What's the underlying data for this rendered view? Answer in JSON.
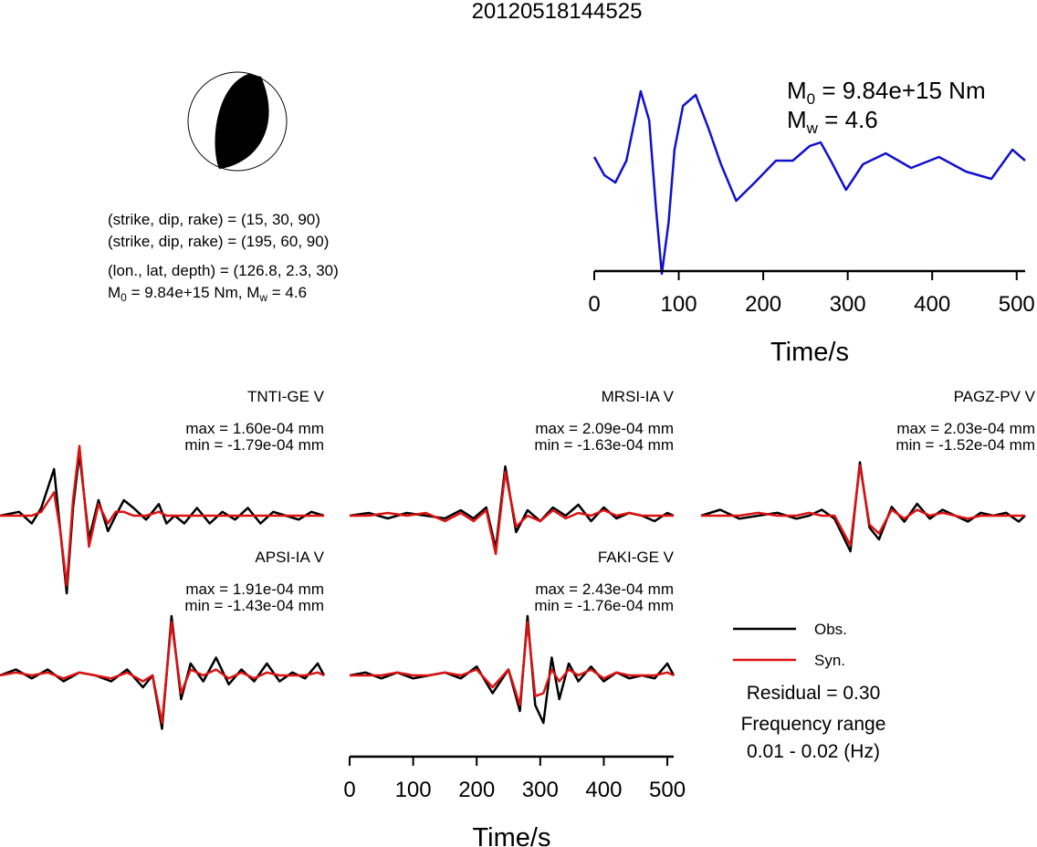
{
  "title": "20120518144525",
  "colors": {
    "observed": "#000000",
    "synthetic": "#dd1111",
    "source_time_function": "#1111cc",
    "beachball_fill": "#000000"
  },
  "mechanism": {
    "line1": "(strike, dip, rake) = (15, 30, 90)",
    "line2": "(strike, dip, rake) = (195, 60, 90)",
    "line3": "(lon., lat, depth) = (126.8, 2.3, 30)",
    "moment_prefix": "M",
    "moment_sub": "0",
    "moment_value": " = 9.84e+15 Nm, M",
    "magnitude_sub": "w",
    "magnitude_value": " = 4.6"
  },
  "stf_label": {
    "m0_prefix": "M",
    "m0_sub": "0",
    "m0_value": " = 9.84e+15 Nm",
    "mw_prefix": "M",
    "mw_sub": "w",
    "mw_value": " = 4.6"
  },
  "stations": [
    {
      "name": "TNTI-GE V",
      "max": "max = 1.60e-04 mm",
      "min": "min = -1.79e-04 mm"
    },
    {
      "name": "MRSI-IA V",
      "max": "max = 2.09e-04 mm",
      "min": "min = -1.63e-04 mm"
    },
    {
      "name": "PAGZ-PV V",
      "max": "max = 2.03e-04 mm",
      "min": "min = -1.52e-04 mm"
    },
    {
      "name": "APSI-IA V",
      "max": "max = 1.91e-04 mm",
      "min": "min = -1.43e-04 mm"
    },
    {
      "name": "FAKI-GE V",
      "max": "max = 2.43e-04 mm",
      "min": "min = -1.76e-04 mm"
    }
  ],
  "legend": {
    "observed": "Obs.",
    "synthetic": "Syn."
  },
  "residual": "Residual = 0.30",
  "frequency_title": "Frequency range",
  "frequency_value": "0.01 - 0.02 (Hz)",
  "chart_data": [
    {
      "type": "line",
      "title": "",
      "xlabel": "Time/s",
      "ylabel": "",
      "xlim": [
        0,
        510
      ],
      "xticks": [
        0,
        100,
        200,
        300,
        400,
        500
      ],
      "series": [
        {
          "x": [
            0,
            12,
            25,
            38,
            55,
            65,
            73,
            80,
            88,
            95,
            105,
            120,
            135,
            150,
            168,
            190,
            215,
            235,
            255,
            268,
            280,
            298,
            318,
            345,
            375,
            408,
            440,
            470,
            495,
            510
          ],
          "y": [
            0.1,
            -0.15,
            -0.25,
            0.05,
            1.0,
            0.6,
            -0.6,
            -1.5,
            -0.8,
            0.2,
            0.8,
            0.95,
            0.5,
            0.0,
            -0.5,
            -0.25,
            0.05,
            0.05,
            0.25,
            0.3,
            0.05,
            -0.35,
            0.0,
            0.15,
            -0.05,
            0.1,
            -0.1,
            -0.2,
            0.2,
            0.05
          ]
        }
      ]
    },
    {
      "type": "line",
      "title": "TNTI-GE V",
      "xlim": [
        0,
        510
      ],
      "series": [
        {
          "name": "Obs.",
          "x": [
            0,
            30,
            50,
            65,
            85,
            95,
            105,
            115,
            125,
            140,
            155,
            170,
            182,
            195,
            210,
            230,
            250,
            262,
            275,
            290,
            310,
            330,
            350,
            370,
            390,
            410,
            430,
            450,
            470,
            490,
            510
          ],
          "y": [
            0.0,
            0.05,
            -0.1,
            0.1,
            0.6,
            -0.2,
            -1.0,
            0.1,
            0.8,
            -0.3,
            0.2,
            -0.2,
            0.0,
            0.2,
            0.1,
            -0.05,
            0.15,
            -0.1,
            0.0,
            -0.1,
            0.1,
            -0.1,
            0.05,
            -0.05,
            0.1,
            -0.1,
            0.05,
            0.0,
            -0.05,
            0.05,
            0.0
          ]
        },
        {
          "name": "Syn.",
          "x": [
            0,
            30,
            50,
            65,
            85,
            95,
            105,
            115,
            125,
            140,
            155,
            170,
            182,
            195,
            210,
            230,
            250,
            262,
            275,
            290,
            310,
            330,
            350,
            370,
            390,
            410,
            430,
            450,
            470,
            490,
            510
          ],
          "y": [
            0.0,
            0.0,
            0.0,
            0.05,
            0.3,
            -0.2,
            -0.9,
            0.2,
            0.9,
            -0.4,
            0.15,
            -0.1,
            0.05,
            0.05,
            0.0,
            0.0,
            0.05,
            0.0,
            0.0,
            0.0,
            0.0,
            0.0,
            0.0,
            0.0,
            0.0,
            0.0,
            0.0,
            0.0,
            0.0,
            0.0,
            0.0
          ]
        }
      ]
    },
    {
      "type": "line",
      "title": "MRSI-IA V",
      "xlim": [
        0,
        510
      ],
      "series": [
        {
          "name": "Obs.",
          "x": [
            0,
            30,
            60,
            90,
            120,
            150,
            175,
            195,
            215,
            230,
            245,
            262,
            280,
            300,
            320,
            340,
            360,
            380,
            400,
            420,
            440,
            460,
            480,
            500,
            510
          ],
          "y": [
            0.0,
            0.05,
            -0.05,
            0.05,
            0.0,
            -0.05,
            0.1,
            -0.05,
            0.15,
            -0.6,
            0.9,
            -0.3,
            0.1,
            -0.1,
            0.15,
            0.0,
            0.2,
            -0.1,
            0.15,
            -0.05,
            0.05,
            0.0,
            -0.1,
            0.05,
            0.0
          ]
        },
        {
          "name": "Syn.",
          "x": [
            0,
            30,
            60,
            90,
            120,
            150,
            175,
            195,
            215,
            230,
            245,
            262,
            280,
            300,
            320,
            340,
            360,
            380,
            400,
            420,
            440,
            460,
            480,
            500,
            510
          ],
          "y": [
            0.0,
            0.0,
            0.05,
            0.0,
            0.05,
            -0.1,
            0.05,
            -0.1,
            0.1,
            -0.7,
            0.8,
            -0.2,
            0.0,
            -0.1,
            0.1,
            -0.05,
            0.05,
            0.0,
            0.1,
            0.0,
            0.05,
            0.0,
            0.0,
            0.0,
            0.0
          ]
        }
      ]
    },
    {
      "type": "line",
      "title": "PAGZ-PV V",
      "xlim": [
        0,
        510
      ],
      "series": [
        {
          "name": "Obs.",
          "x": [
            0,
            30,
            60,
            90,
            120,
            150,
            170,
            190,
            210,
            235,
            250,
            265,
            280,
            300,
            320,
            340,
            360,
            380,
            400,
            420,
            440,
            460,
            480,
            500,
            510
          ],
          "y": [
            0.0,
            0.1,
            -0.05,
            0.0,
            0.05,
            -0.05,
            0.0,
            0.1,
            -0.05,
            -0.6,
            0.9,
            -0.2,
            -0.4,
            0.15,
            -0.1,
            0.2,
            -0.05,
            0.1,
            0.0,
            -0.1,
            0.05,
            0.0,
            0.05,
            -0.1,
            0.0
          ]
        },
        {
          "name": "Syn.",
          "x": [
            0,
            30,
            60,
            90,
            120,
            150,
            170,
            190,
            210,
            235,
            250,
            265,
            280,
            300,
            320,
            340,
            360,
            380,
            400,
            420,
            440,
            460,
            480,
            500,
            510
          ],
          "y": [
            0.0,
            0.0,
            0.0,
            0.05,
            0.0,
            0.0,
            0.05,
            0.0,
            0.0,
            -0.5,
            0.85,
            -0.15,
            -0.3,
            0.1,
            -0.05,
            0.1,
            0.0,
            0.05,
            0.0,
            -0.05,
            0.0,
            0.0,
            0.0,
            0.0,
            0.0
          ]
        }
      ]
    },
    {
      "type": "line",
      "title": "APSI-IA V",
      "xlim": [
        0,
        510
      ],
      "series": [
        {
          "name": "Obs.",
          "x": [
            0,
            25,
            50,
            75,
            100,
            125,
            150,
            175,
            200,
            225,
            240,
            255,
            270,
            285,
            300,
            320,
            340,
            360,
            380,
            400,
            420,
            440,
            460,
            480,
            500,
            510
          ],
          "y": [
            0.0,
            0.1,
            -0.05,
            0.1,
            -0.1,
            0.05,
            0.0,
            -0.1,
            0.1,
            -0.2,
            0.0,
            -0.9,
            1.0,
            -0.4,
            0.2,
            -0.1,
            0.3,
            -0.15,
            0.1,
            -0.1,
            0.2,
            -0.1,
            0.05,
            -0.05,
            0.2,
            0.0
          ]
        },
        {
          "name": "Syn.",
          "x": [
            0,
            25,
            50,
            75,
            100,
            125,
            150,
            175,
            200,
            225,
            240,
            255,
            270,
            285,
            300,
            320,
            340,
            360,
            380,
            400,
            420,
            440,
            460,
            480,
            500,
            510
          ],
          "y": [
            0.0,
            0.05,
            0.0,
            0.05,
            -0.05,
            0.05,
            0.0,
            -0.05,
            0.05,
            -0.1,
            0.0,
            -0.8,
            0.9,
            -0.3,
            0.1,
            0.0,
            0.1,
            -0.05,
            0.05,
            -0.05,
            0.05,
            0.0,
            0.0,
            0.0,
            0.05,
            0.0
          ]
        }
      ]
    },
    {
      "type": "line",
      "title": "FAKI-GE V",
      "xlim": [
        0,
        510
      ],
      "series": [
        {
          "name": "Obs.",
          "x": [
            0,
            25,
            50,
            75,
            100,
            125,
            150,
            175,
            200,
            225,
            250,
            268,
            280,
            292,
            305,
            318,
            330,
            345,
            360,
            380,
            400,
            420,
            440,
            460,
            480,
            500,
            510
          ],
          "y": [
            0.0,
            0.05,
            -0.05,
            0.05,
            -0.05,
            0.0,
            0.05,
            -0.05,
            0.15,
            -0.3,
            0.1,
            -0.6,
            1.0,
            -0.5,
            -0.8,
            0.3,
            -0.4,
            0.2,
            -0.1,
            0.15,
            -0.1,
            0.05,
            -0.05,
            0.0,
            -0.05,
            0.2,
            0.0
          ]
        },
        {
          "name": "Syn.",
          "x": [
            0,
            25,
            50,
            75,
            100,
            125,
            150,
            175,
            200,
            225,
            250,
            268,
            280,
            292,
            305,
            318,
            330,
            345,
            360,
            380,
            400,
            420,
            440,
            460,
            480,
            500,
            510
          ],
          "y": [
            0.0,
            0.0,
            0.0,
            0.05,
            0.0,
            0.0,
            0.05,
            0.0,
            0.1,
            -0.2,
            0.1,
            -0.5,
            0.9,
            -0.35,
            -0.3,
            0.1,
            -0.1,
            0.1,
            0.0,
            0.1,
            -0.05,
            0.05,
            0.0,
            0.0,
            0.0,
            0.05,
            0.0
          ]
        }
      ]
    },
    {
      "type": "line",
      "title": "",
      "xlabel": "Time/s",
      "xlim": [
        0,
        510
      ],
      "xticks": [
        0,
        100,
        200,
        300,
        400,
        500
      ]
    }
  ]
}
